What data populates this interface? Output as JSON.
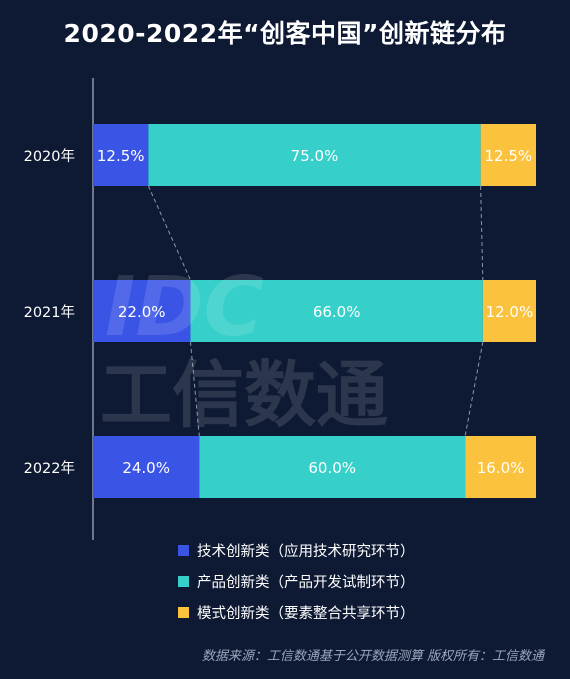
{
  "title": "2020-2022年“创客中国”创新链分布",
  "chart_data": {
    "type": "bar",
    "orientation": "horizontal",
    "stacked": true,
    "percent": true,
    "categories": [
      "2020年",
      "2021年",
      "2022年"
    ],
    "series": [
      {
        "name": "技术创新类（应用技术研究环节）",
        "color": "#3a55e6",
        "values": [
          12.5,
          22.0,
          24.0
        ],
        "labels": [
          "12.5%",
          "22.0%",
          "24.0%"
        ]
      },
      {
        "name": "产品创新类（产品开发试制环节）",
        "color": "#36cfc9",
        "values": [
          75.0,
          66.0,
          60.0
        ],
        "labels": [
          "75.0%",
          "66.0%",
          "60.0%"
        ]
      },
      {
        "name": "模式创新类（要素整合共享环节）",
        "color": "#fbc23d",
        "values": [
          12.5,
          12.0,
          16.0
        ],
        "labels": [
          "12.5%",
          "12.0%",
          "16.0%"
        ]
      }
    ],
    "xlim": [
      0,
      100
    ],
    "legend_position": "bottom",
    "connector_lines": true
  },
  "watermark": {
    "logo": "IDC",
    "text": "工信数通"
  },
  "source": "数据来源：工信数通基于公开数据测算  版权所有：工信数通"
}
